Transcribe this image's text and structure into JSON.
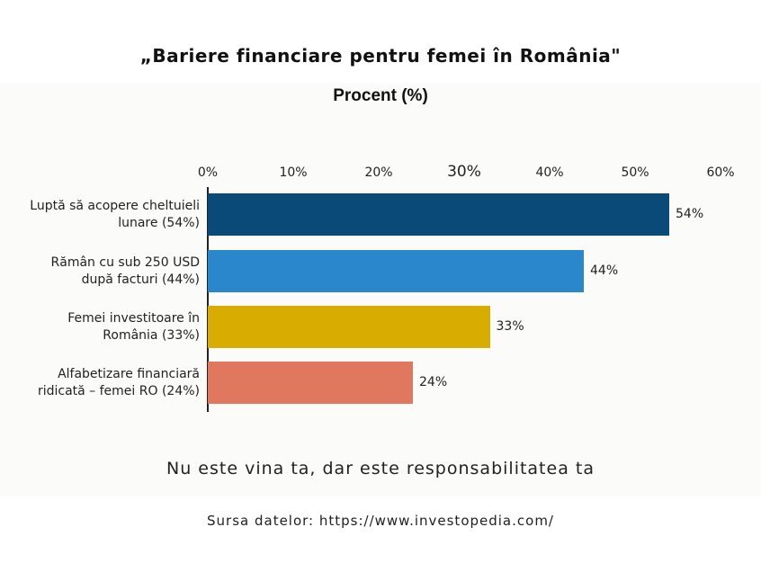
{
  "title": "„Bariere financiare pentru femei în România\"",
  "subtitle": "Procent (%)",
  "tagline": "Nu este vina ta, dar este responsabilitatea ta",
  "source": "Sursa datelor: https://www.investopedia.com/",
  "ticks": [
    "0%",
    "10%",
    "20%",
    "30%",
    "40%",
    "50%",
    "60%"
  ],
  "bars": [
    {
      "label_line1": "Luptă să acopere cheltuieli",
      "label_line2": "lunare (54%)",
      "value": 54,
      "value_label": "54%",
      "color": "#0a4a78"
    },
    {
      "label_line1": "Rămân cu sub 250 USD",
      "label_line2": "după facturi (44%)",
      "value": 44,
      "value_label": "44%",
      "color": "#2a87cc"
    },
    {
      "label_line1": "Femei investitoare în",
      "label_line2": "România (33%)",
      "value": 33,
      "value_label": "33%",
      "color": "#d8ac00"
    },
    {
      "label_line1": "Alfabetizare financiară",
      "label_line2": "ridicată – femei RO (24%)",
      "value": 24,
      "value_label": "24%",
      "color": "#e07860"
    }
  ],
  "chart_data": {
    "type": "bar",
    "orientation": "horizontal",
    "title": "„Bariere financiare pentru femei în România\"",
    "subtitle": "Procent (%)",
    "categories": [
      "Luptă să acopere cheltuieli lunare (54%)",
      "Rămân cu sub 250 USD după facturi (44%)",
      "Femei investitoare în România (33%)",
      "Alfabetizare financiară ridicată – femei RO (24%)"
    ],
    "values": [
      54,
      44,
      33,
      24
    ],
    "colors": [
      "#0a4a78",
      "#2a87cc",
      "#d8ac00",
      "#e07860"
    ],
    "xlabel": "Procent (%)",
    "ylabel": "",
    "xlim": [
      0,
      60
    ],
    "xticks": [
      "0%",
      "10%",
      "20%",
      "30%",
      "40%",
      "50%",
      "60%"
    ],
    "x_axis_position": "top",
    "grid": false,
    "legend": "none",
    "annotations": [
      "Nu este vina ta, dar este responsabilitatea ta",
      "Sursa datelor: https://www.investopedia.com/"
    ]
  }
}
